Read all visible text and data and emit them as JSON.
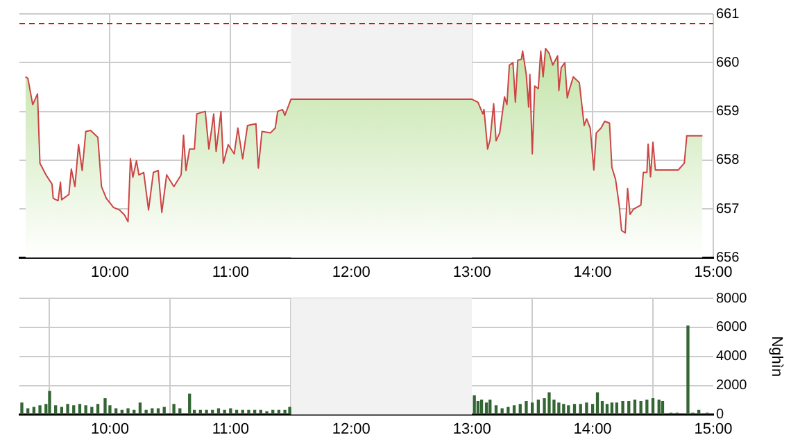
{
  "chart_data": [
    {
      "type": "area",
      "xlim": [
        9.25,
        15
      ],
      "xticks": [
        {
          "value": 10,
          "label": "10:00"
        },
        {
          "value": 11,
          "label": "11:00"
        },
        {
          "value": 12,
          "label": "12:00"
        },
        {
          "value": 13,
          "label": "13:00"
        },
        {
          "value": 14,
          "label": "14:00"
        },
        {
          "value": 15,
          "label": "15:00"
        }
      ],
      "ylim": [
        656,
        661
      ],
      "yticks": [
        656,
        657,
        658,
        659,
        660,
        661
      ],
      "grid": true,
      "legend": false,
      "bands": [
        {
          "axis": "x",
          "from": 11.5,
          "to": 13,
          "color": "#f2f2f2"
        }
      ],
      "ref_lines": [
        {
          "axis": "y",
          "value": 660.8,
          "color": "#ff0000",
          "line_style": "dashed"
        }
      ],
      "series": [
        {
          "color": "#b8df98",
          "x": [
            9.3,
            9.32,
            9.36,
            9.4,
            9.42,
            9.47,
            9.52,
            9.53,
            9.57,
            9.59,
            9.6,
            9.66,
            9.68,
            9.71,
            9.74,
            9.77,
            9.8,
            9.84,
            9.9,
            9.93,
            9.97,
            10.03,
            10.08,
            10.12,
            10.15,
            10.17,
            10.19,
            10.22,
            10.24,
            10.28,
            10.32,
            10.36,
            10.4,
            10.43,
            10.47,
            10.53,
            10.59,
            10.61,
            10.63,
            10.66,
            10.7,
            10.72,
            10.79,
            10.82,
            10.86,
            10.88,
            10.92,
            10.94,
            10.98,
            11.03,
            11.06,
            11.1,
            11.14,
            11.21,
            11.23,
            11.26,
            11.33,
            11.37,
            11.39,
            11.43,
            11.45,
            11.5,
            13,
            13.05,
            13.09,
            13.1,
            13.13,
            13.15,
            13.18,
            13.2,
            13.23,
            13.27,
            13.29,
            13.31,
            13.34,
            13.36,
            13.38,
            13.41,
            13.42,
            13.45,
            13.47,
            13.48,
            13.5,
            13.52,
            13.55,
            13.57,
            13.59,
            13.61,
            13.64,
            13.67,
            13.71,
            13.72,
            13.74,
            13.77,
            13.79,
            13.81,
            13.84,
            13.89,
            13.93,
            13.95,
            13.98,
            14.01,
            14.03,
            14.07,
            14.1,
            14.14,
            14.16,
            14.19,
            14.22,
            14.24,
            14.27,
            14.29,
            14.31,
            14.34,
            14.4,
            14.42,
            14.45,
            14.46,
            14.48,
            14.5,
            14.52,
            14.71,
            14.76,
            14.78,
            14.91
          ],
          "values": [
            659.71,
            659.68,
            659.14,
            659.36,
            657.94,
            657.7,
            657.51,
            657.22,
            657.17,
            657.55,
            657.19,
            657.3,
            657.82,
            657.46,
            658.32,
            657.79,
            658.59,
            658.61,
            658.47,
            657.46,
            657.22,
            657.03,
            656.98,
            656.88,
            656.74,
            658.03,
            657.65,
            657.99,
            657.7,
            657.75,
            656.98,
            657.75,
            657.79,
            656.93,
            657.7,
            657.46,
            657.7,
            658.51,
            657.79,
            658.23,
            658.23,
            658.95,
            659,
            658.23,
            658.95,
            658.18,
            659,
            657.94,
            658.32,
            658.13,
            658.66,
            658.03,
            658.71,
            658.75,
            657.84,
            658.59,
            658.56,
            658.66,
            659,
            659.04,
            658.92,
            659.25,
            659.25,
            659.19,
            658.95,
            659.04,
            658.23,
            658.42,
            659.16,
            658.4,
            658.56,
            659.3,
            659.14,
            659.95,
            660,
            659.19,
            660.05,
            660.07,
            660.24,
            659.76,
            659.09,
            659.76,
            658.13,
            659.52,
            659.47,
            660.24,
            659.71,
            660.29,
            660.19,
            659.95,
            660.14,
            659.43,
            659.9,
            660,
            659.28,
            659.47,
            659.71,
            659.59,
            658.71,
            658.85,
            658.66,
            657.8,
            658.56,
            658.66,
            658.8,
            658.76,
            657.85,
            657.61,
            657.08,
            656.56,
            656.51,
            657.42,
            656.89,
            657,
            657.08,
            657.75,
            657.75,
            658.33,
            657.66,
            658.37,
            657.8,
            657.8,
            657.94,
            658.5,
            658.5
          ]
        }
      ]
    },
    {
      "type": "bar",
      "ylabel": "Nghìn",
      "xlim": [
        9.25,
        15
      ],
      "xticks": [
        {
          "value": 10,
          "label": "10:00"
        },
        {
          "value": 11,
          "label": "11:00"
        },
        {
          "value": 12,
          "label": "12:00"
        },
        {
          "value": 13,
          "label": "13:00"
        },
        {
          "value": 14,
          "label": "14:00"
        },
        {
          "value": 15,
          "label": "15:00"
        }
      ],
      "ylim": [
        0,
        8000
      ],
      "yticks": [
        0,
        2000,
        4000,
        6000,
        8000
      ],
      "grid": true,
      "legend": false,
      "bands": [
        {
          "axis": "x",
          "from": 11.5,
          "to": 13,
          "color": "#f2f2f2"
        }
      ],
      "series": [
        {
          "color": "#336633",
          "x": [
            9.27,
            9.32,
            9.37,
            9.42,
            9.47,
            9.5,
            9.55,
            9.6,
            9.65,
            9.7,
            9.75,
            9.8,
            9.85,
            9.9,
            9.96,
            10,
            10.05,
            10.1,
            10.15,
            10.2,
            10.25,
            10.3,
            10.35,
            10.4,
            10.45,
            10.53,
            10.58,
            10.66,
            10.7,
            10.75,
            10.8,
            10.85,
            10.9,
            10.95,
            11,
            11.05,
            11.1,
            11.15,
            11.2,
            11.25,
            11.3,
            11.35,
            11.4,
            11.45,
            11.49,
            13.02,
            13.05,
            13.08,
            13.12,
            13.15,
            13.2,
            13.25,
            13.3,
            13.35,
            13.4,
            13.45,
            13.5,
            13.55,
            13.6,
            13.64,
            13.68,
            13.72,
            13.76,
            13.8,
            13.85,
            13.9,
            13.95,
            14,
            14.04,
            14.08,
            14.12,
            14.16,
            14.2,
            14.25,
            14.3,
            14.35,
            14.4,
            14.45,
            14.5,
            14.55,
            14.58,
            14.65,
            14.7,
            14.79,
            14.83,
            14.88,
            14.95
          ],
          "values": [
            800,
            400,
            500,
            600,
            700,
            1600,
            600,
            500,
            700,
            600,
            700,
            600,
            500,
            700,
            1100,
            600,
            400,
            300,
            400,
            300,
            800,
            300,
            400,
            400,
            500,
            700,
            400,
            1400,
            300,
            300,
            300,
            300,
            400,
            300,
            400,
            300,
            300,
            300,
            300,
            300,
            200,
            300,
            300,
            300,
            500,
            1300,
            900,
            1000,
            800,
            1000,
            600,
            400,
            500,
            600,
            700,
            900,
            800,
            1000,
            1100,
            1500,
            1000,
            800,
            700,
            600,
            700,
            700,
            800,
            700,
            1500,
            900,
            700,
            800,
            800,
            900,
            900,
            1000,
            900,
            1000,
            1100,
            1000,
            900,
            100,
            100,
            6100,
            100,
            300,
            100
          ]
        }
      ]
    }
  ]
}
